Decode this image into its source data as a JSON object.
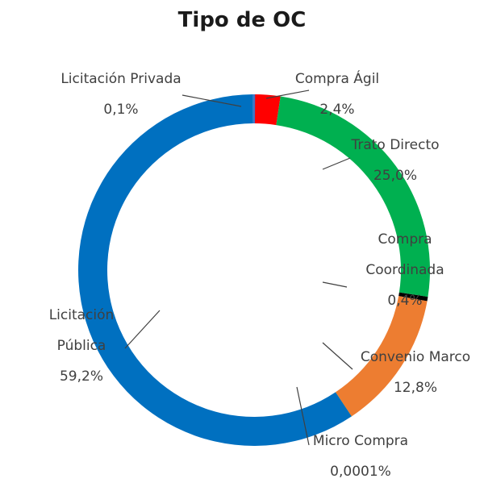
{
  "chart_data": {
    "type": "pie",
    "variant": "donut",
    "title": "Tipo de OC",
    "series": [
      {
        "name": "Compra Ágil",
        "value": 2.4,
        "value_label": "2,4%",
        "color": "#ff0000"
      },
      {
        "name": "Trato Directo",
        "value": 25.0,
        "value_label": "25,0%",
        "color": "#00b050"
      },
      {
        "name": "Compra Coordinada",
        "value": 0.4,
        "value_label": "0,4%",
        "color": "#000000"
      },
      {
        "name": "Convenio Marco",
        "value": 12.8,
        "value_label": "12,8%",
        "color": "#ed7d31"
      },
      {
        "name": "Micro Compra",
        "value": 0.0001,
        "value_label": "0,0001%",
        "color": "#ffc000"
      },
      {
        "name": "Licitación Pública",
        "value": 59.2,
        "value_label": "59,2%",
        "color": "#0070c0"
      },
      {
        "name": "Licitación Privada",
        "value": 0.1,
        "value_label": "0,1%",
        "color": "#4472c4"
      }
    ],
    "label_lines": {
      "Compra Ágil": [
        "Compra Ágil"
      ],
      "Trato Directo": [
        "Trato Directo"
      ],
      "Compra Coordinada": [
        "Compra",
        "Coordinada"
      ],
      "Convenio Marco": [
        "Convenio Marco"
      ],
      "Micro Compra": [
        "Micro Compra"
      ],
      "Licitación Pública": [
        "Licitación",
        "Pública"
      ],
      "Licitación Privada": [
        "Licitación Privada"
      ]
    },
    "legend": "none",
    "leader_line_color": "#404040"
  }
}
